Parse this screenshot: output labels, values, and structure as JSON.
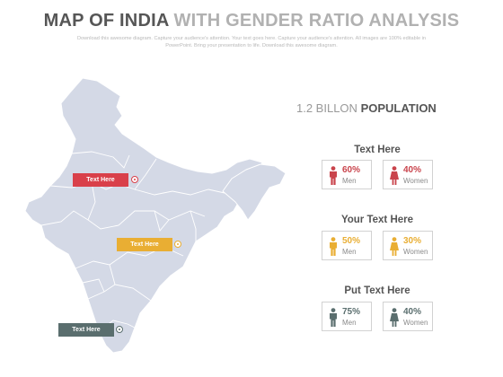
{
  "header": {
    "title_main": "MAP OF INDIA",
    "title_rest": "WITH GENDER RATIO ANALYSIS",
    "subtitle": "Download this awesome diagram. Capture your audience's attention. Your text goes here. Capture your audience's attention. All images are 100% editable in PowerPoint. Bring your presentation to life. Download this awesome diagram."
  },
  "map": {
    "labels": [
      {
        "text": "Text Here",
        "color": "#d9404a"
      },
      {
        "text": "Text Here",
        "color": "#e9ae33"
      },
      {
        "text": "Text Here",
        "color": "#5a6e6e"
      }
    ]
  },
  "population": {
    "number": "1.2 BILLON",
    "word": "POPULATION"
  },
  "groups": [
    {
      "title": "Text Here",
      "color": "#c9444c",
      "men": {
        "pct": "60%",
        "label": "Men",
        "icon": "man-icon"
      },
      "women": {
        "pct": "40%",
        "label": "Women",
        "icon": "woman-icon"
      }
    },
    {
      "title": "Your Text Here",
      "color": "#e9ae33",
      "men": {
        "pct": "50%",
        "label": "Men",
        "icon": "man-icon"
      },
      "women": {
        "pct": "30%",
        "label": "Women",
        "icon": "woman-icon"
      }
    },
    {
      "title": "Put Text Here",
      "color": "#5a6e6e",
      "men": {
        "pct": "75%",
        "label": "Men",
        "icon": "man-icon"
      },
      "women": {
        "pct": "40%",
        "label": "Women",
        "icon": "woman-icon"
      }
    }
  ]
}
